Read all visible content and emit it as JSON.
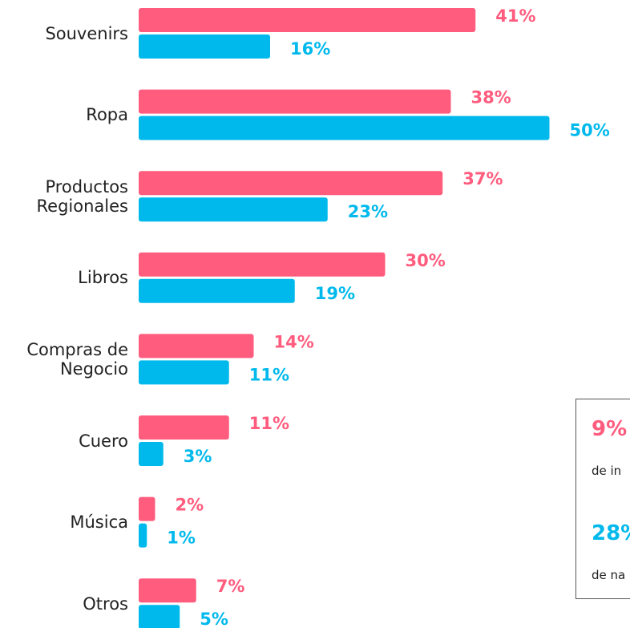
{
  "chart_data": {
    "type": "hbar",
    "categories": [
      "Souvenirs",
      "Ropa",
      "Productos Regionales",
      "Libros",
      "Compras de Negocio",
      "Cuero",
      "Música",
      "Otros"
    ],
    "series": [
      {
        "color": "#ff5c7e",
        "values": [
          41,
          38,
          37,
          30,
          14,
          11,
          2,
          7
        ],
        "value_labels": [
          "41%",
          "38%",
          "37%",
          "30%",
          "14%",
          "11%",
          "2%",
          "7%"
        ]
      },
      {
        "color": "#00b9ec",
        "values": [
          16,
          50,
          23,
          19,
          11,
          3,
          1,
          5
        ],
        "value_labels": [
          "16%",
          "50%",
          "23%",
          "19%",
          "11%",
          "3%",
          "1%",
          "5%"
        ]
      }
    ],
    "annotations": [
      {
        "text": "9%",
        "color": "#ff5c7e"
      },
      {
        "text": "de in"
      },
      {
        "text": "28%",
        "color": "#00b9ec"
      },
      {
        "text": "de na"
      }
    ]
  }
}
